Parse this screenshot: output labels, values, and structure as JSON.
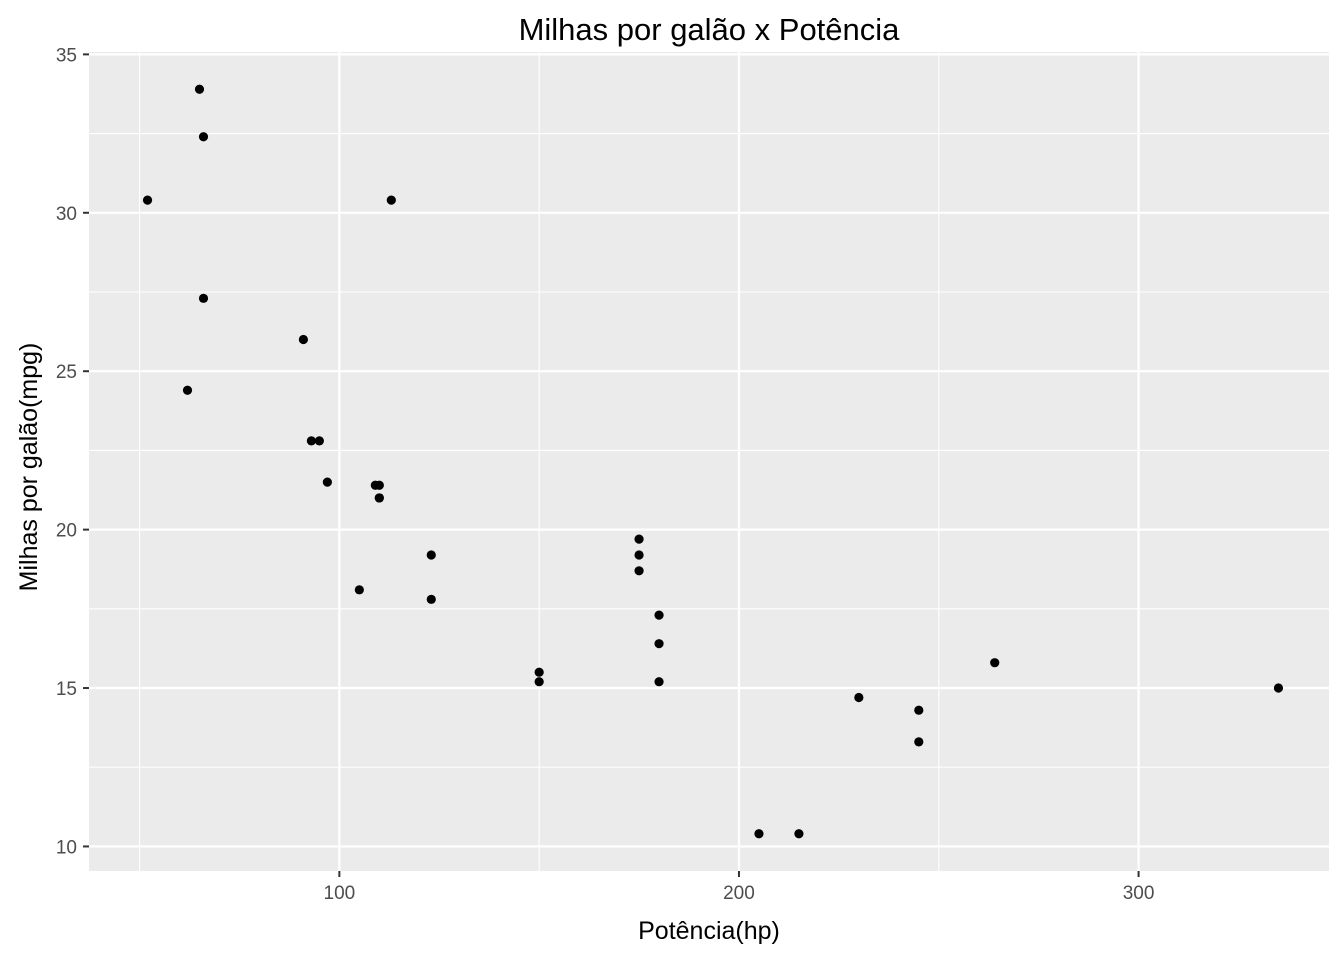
{
  "chart_data": {
    "type": "scatter",
    "title": "Milhas por galão x Potência",
    "xlabel": "Potência(hp)",
    "ylabel": "Milhas por galão(mpg)",
    "xlim": [
      37.35,
      347.65
    ],
    "ylim": [
      9.225,
      35.075
    ],
    "x_ticks": [
      100,
      200,
      300
    ],
    "x_tick_labels": [
      "100",
      "200",
      "300"
    ],
    "x_minor_ticks": [
      50,
      150,
      250
    ],
    "y_ticks": [
      10,
      15,
      20,
      25,
      30,
      35
    ],
    "y_tick_labels": [
      "10",
      "15",
      "20",
      "25",
      "30",
      "35"
    ],
    "y_minor_ticks": [
      12.5,
      17.5,
      22.5,
      27.5,
      32.5
    ],
    "grid": true,
    "legend": "none",
    "colors": {
      "panel_background": "#ebebeb",
      "grid": "#ffffff",
      "point": "#000000",
      "tick": "#333333"
    },
    "points": [
      {
        "x": 110,
        "y": 21.0
      },
      {
        "x": 110,
        "y": 21.0
      },
      {
        "x": 93,
        "y": 22.8
      },
      {
        "x": 110,
        "y": 21.4
      },
      {
        "x": 175,
        "y": 18.7
      },
      {
        "x": 105,
        "y": 18.1
      },
      {
        "x": 245,
        "y": 14.3
      },
      {
        "x": 62,
        "y": 24.4
      },
      {
        "x": 95,
        "y": 22.8
      },
      {
        "x": 123,
        "y": 19.2
      },
      {
        "x": 123,
        "y": 17.8
      },
      {
        "x": 180,
        "y": 16.4
      },
      {
        "x": 180,
        "y": 17.3
      },
      {
        "x": 180,
        "y": 15.2
      },
      {
        "x": 205,
        "y": 10.4
      },
      {
        "x": 215,
        "y": 10.4
      },
      {
        "x": 230,
        "y": 14.7
      },
      {
        "x": 66,
        "y": 32.4
      },
      {
        "x": 52,
        "y": 30.4
      },
      {
        "x": 65,
        "y": 33.9
      },
      {
        "x": 97,
        "y": 21.5
      },
      {
        "x": 150,
        "y": 15.5
      },
      {
        "x": 150,
        "y": 15.2
      },
      {
        "x": 245,
        "y": 13.3
      },
      {
        "x": 175,
        "y": 19.2
      },
      {
        "x": 66,
        "y": 27.3
      },
      {
        "x": 91,
        "y": 26.0
      },
      {
        "x": 113,
        "y": 30.4
      },
      {
        "x": 264,
        "y": 15.8
      },
      {
        "x": 175,
        "y": 19.7
      },
      {
        "x": 335,
        "y": 15.0
      },
      {
        "x": 109,
        "y": 21.4
      }
    ]
  }
}
